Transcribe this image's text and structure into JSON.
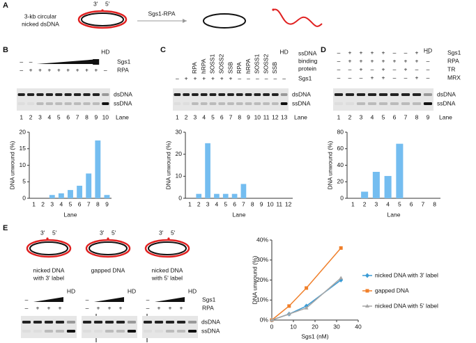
{
  "panel_a": {
    "letter": "A",
    "substrate": [
      "3-kb circular",
      "nicked dsDNA"
    ],
    "end3": "3'",
    "end5": "5'",
    "arrow": "Sgs1-RPA"
  },
  "gel_b": {
    "letter": "B",
    "hd": "HD",
    "lane_title": "Lane",
    "bands": [
      "dsDNA",
      "ssDNA"
    ],
    "lanes": [
      1,
      2,
      3,
      4,
      5,
      6,
      7,
      8,
      9,
      10
    ],
    "rows": [
      {
        "name": "Sgs1",
        "signs": [
          "–",
          "–"
        ]
      },
      {
        "name": "RPA",
        "signs": [
          "–",
          "+",
          "+",
          "+",
          "+",
          "+",
          "+",
          "+",
          "+",
          "–"
        ]
      }
    ]
  },
  "gel_c": {
    "letter": "C",
    "hd": "HD",
    "lane_title": "Lane",
    "bands": [
      "dsDNA",
      "ssDNA"
    ],
    "lanes": [
      1,
      2,
      3,
      4,
      5,
      6,
      7,
      8,
      9,
      10,
      11,
      12,
      13
    ],
    "header_title": [
      "ssDNA",
      "binding",
      "protein"
    ],
    "headers": [
      "RPA",
      "hRPA",
      "SOSS1",
      "SOSS2",
      "SSB",
      "RPA",
      "hRPA",
      "SOSS1",
      "SOSS2",
      "SSB"
    ],
    "rows": [
      {
        "name": "Sgs1",
        "signs": [
          "–",
          "+",
          "+",
          "+",
          "+",
          "+",
          "+",
          "–",
          "–",
          "–",
          "–",
          "–",
          "–"
        ]
      }
    ]
  },
  "gel_d": {
    "letter": "D",
    "hd": "HD",
    "lane_title": "Lane",
    "bands": [
      "dsDNA",
      "ssDNA"
    ],
    "lanes": [
      1,
      2,
      3,
      4,
      5,
      6,
      7,
      8,
      9
    ],
    "rows": [
      {
        "name": "Sgs1",
        "signs": [
          "–",
          "+",
          "+",
          "+",
          "+",
          "–",
          "–",
          "+",
          "–"
        ]
      },
      {
        "name": "RPA",
        "signs": [
          "–",
          "+",
          "+",
          "+",
          "+",
          "+",
          "+",
          "+",
          "–"
        ]
      },
      {
        "name": "TR",
        "signs": [
          "–",
          "–",
          "+",
          "–",
          "+",
          "–",
          "+",
          "–",
          "–"
        ]
      },
      {
        "name": "MRX",
        "signs": [
          "–",
          "–",
          "–",
          "+",
          "+",
          "–",
          "–",
          "+",
          "–"
        ]
      }
    ]
  },
  "gel_e": {
    "letter": "E",
    "hd": "HD",
    "bands": [
      "dsDNA",
      "ssDNA"
    ],
    "end3": "3'",
    "end5": "5'",
    "substrates": [
      [
        "nicked DNA",
        "with 3' label"
      ],
      [
        "gapped DNA"
      ],
      [
        "nicked DNA",
        "with 5' label"
      ]
    ],
    "rows": [
      {
        "name": "Sgs1",
        "signs": [
          "–"
        ]
      },
      {
        "name": "RPA",
        "signs": [
          "–",
          "+",
          "+",
          "+"
        ]
      }
    ]
  },
  "chart_data": [
    {
      "type": "bar",
      "color": "#74bdf0",
      "x_label": "Lane",
      "y_label": "DNA unwound (%)",
      "categories": [
        1,
        2,
        3,
        4,
        5,
        6,
        7,
        8,
        9
      ],
      "values": [
        0,
        0,
        1,
        1.5,
        2.5,
        3.8,
        7.5,
        17.5,
        1
      ],
      "ylim": [
        0,
        20
      ],
      "yticks": [
        0,
        5,
        10,
        15,
        20
      ]
    },
    {
      "type": "bar",
      "color": "#74bdf0",
      "x_label": "Lane",
      "y_label": "DNA unwound (%)",
      "categories": [
        1,
        2,
        3,
        4,
        5,
        6,
        7,
        8,
        9,
        10,
        11,
        12
      ],
      "values": [
        0,
        2,
        25,
        2,
        2,
        2,
        6.5,
        0,
        0,
        0,
        0,
        0
      ],
      "ylim": [
        0,
        30
      ],
      "yticks": [
        0,
        10,
        20,
        30
      ]
    },
    {
      "type": "bar",
      "color": "#74bdf0",
      "x_label": "Lane",
      "y_label": "DNA unwound (%)",
      "categories": [
        1,
        2,
        3,
        4,
        5,
        6,
        7,
        8
      ],
      "values": [
        0,
        8,
        32,
        27,
        66,
        0,
        0,
        0
      ],
      "ylim": [
        0,
        80
      ],
      "yticks": [
        0,
        20,
        40,
        60,
        80
      ]
    },
    {
      "type": "line",
      "x_label": "Sgs1 (nM)",
      "y_label": "DNA unwound (%)",
      "x": [
        0,
        8,
        16,
        32
      ],
      "xlim": [
        0,
        40
      ],
      "xticks": [
        0,
        10,
        20,
        30,
        40
      ],
      "ylim": [
        0,
        40
      ],
      "yticks": [
        {
          "value": 0,
          "label": "0%"
        },
        {
          "value": 10,
          "label": "10%"
        },
        {
          "value": 20,
          "label": "20%"
        },
        {
          "value": 30,
          "label": "30%"
        },
        {
          "value": 40,
          "label": "40%"
        }
      ],
      "series": [
        {
          "name": "nicked DNA with 3' label",
          "color": "#3a9bd5",
          "values": [
            0,
            3,
            7,
            20
          ]
        },
        {
          "name": "gapped DNA",
          "color": "#f07f2a",
          "values": [
            0,
            7,
            16,
            36
          ]
        },
        {
          "name": "nicked DNA with 5' label",
          "color": "#a6a6a6",
          "values": [
            0,
            3,
            6,
            21
          ]
        }
      ]
    }
  ]
}
